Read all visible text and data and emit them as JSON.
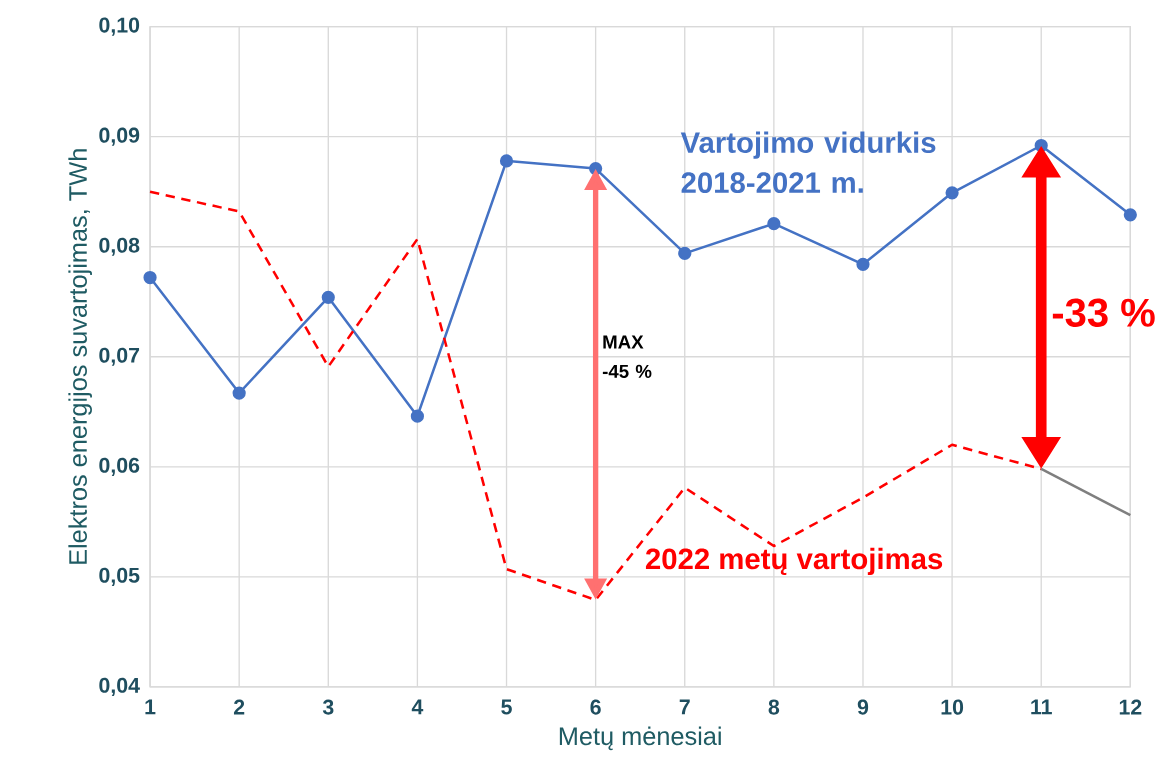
{
  "chart_data": {
    "type": "line",
    "xlabel": "Metų mėnesiai",
    "ylabel": "Elektros energijos suvartojimas, TWh",
    "x": [
      1,
      2,
      3,
      4,
      5,
      6,
      7,
      8,
      9,
      10,
      11,
      12
    ],
    "series": [
      {
        "name": "Vartojimo vidurkis 2018-2021 m.",
        "color": "#4472c4",
        "marker": "circle",
        "line_style": "solid",
        "values": [
          0.0772,
          0.0667,
          0.0754,
          0.0646,
          0.0878,
          0.0871,
          0.0794,
          0.0821,
          0.0784,
          0.0849,
          0.0892,
          0.0829
        ]
      },
      {
        "name": "2022 metų vartojimas",
        "color": "#ff0000",
        "marker": "none",
        "line_style": "dashed",
        "values": [
          0.085,
          0.0832,
          0.0691,
          0.0807,
          0.0507,
          0.0479,
          0.0581,
          0.0528,
          0.0572,
          0.062,
          0.0598,
          null
        ]
      },
      {
        "color": "#7f7f7f",
        "marker": "none",
        "line_style": "solid",
        "x": [
          11,
          12
        ],
        "values": [
          0.0598,
          0.0556
        ]
      }
    ],
    "annotations": [
      "MAX -45 %",
      "-33 %"
    ],
    "xlim": [
      1,
      12
    ],
    "xticks": [
      1,
      2,
      3,
      4,
      5,
      6,
      7,
      8,
      9,
      10,
      11,
      12
    ],
    "ylim": [
      0.04,
      0.1
    ],
    "yticks": [
      {
        "value": 0.04,
        "label": "0,04"
      },
      {
        "value": 0.05,
        "label": "0,05"
      },
      {
        "value": 0.06,
        "label": "0,06"
      },
      {
        "value": 0.07,
        "label": "0,07"
      },
      {
        "value": 0.08,
        "label": "0,08"
      },
      {
        "value": 0.09,
        "label": "0,09"
      },
      {
        "value": 0.1,
        "label": "0,10"
      }
    ],
    "grid": true
  }
}
